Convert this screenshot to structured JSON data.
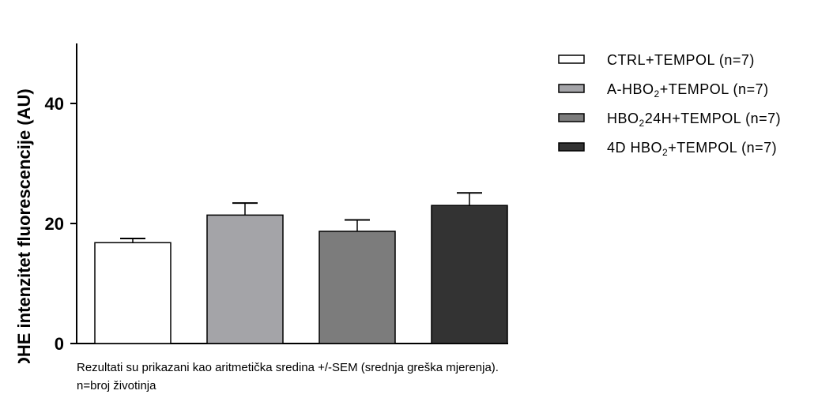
{
  "chart_data": {
    "type": "bar",
    "ylabel": "DHE intenzitet fluorescencije (AU)",
    "ylim": [
      0,
      50
    ],
    "yticks": [
      0,
      20,
      40
    ],
    "grid": false,
    "legend_placement": "right",
    "series": [
      {
        "name": "CTRL+TEMPOL (n=7)",
        "legend_parts": [
          "CTRL+TEMPOL (n=7)"
        ],
        "value": 16.8,
        "sem": 0.7,
        "color": "#ffffff"
      },
      {
        "name": "A-HBO2+TEMPOL (n=7)",
        "legend_parts": [
          "A-HBO",
          "2",
          "+TEMPOL (n=7)"
        ],
        "value": 21.4,
        "sem": 2.0,
        "color": "#a4a4a8"
      },
      {
        "name": "HBO224H+TEMPOL (n=7)",
        "legend_parts": [
          "HBO",
          "2",
          "24H+TEMPOL (n=7)"
        ],
        "value": 18.7,
        "sem": 1.9,
        "color": "#7c7c7c"
      },
      {
        "name": "4D HBO2+TEMPOL (n=7)",
        "legend_parts": [
          "4D HBO",
          "2",
          "+TEMPOL (n=7)"
        ],
        "value": 23.0,
        "sem": 2.1,
        "color": "#333333"
      }
    ]
  },
  "footnote": {
    "line1": "Rezultati su prikazani kao aritmetička sredina +/-SEM (srednja greška mjerenja).",
    "line2": "n=broj životinja"
  }
}
